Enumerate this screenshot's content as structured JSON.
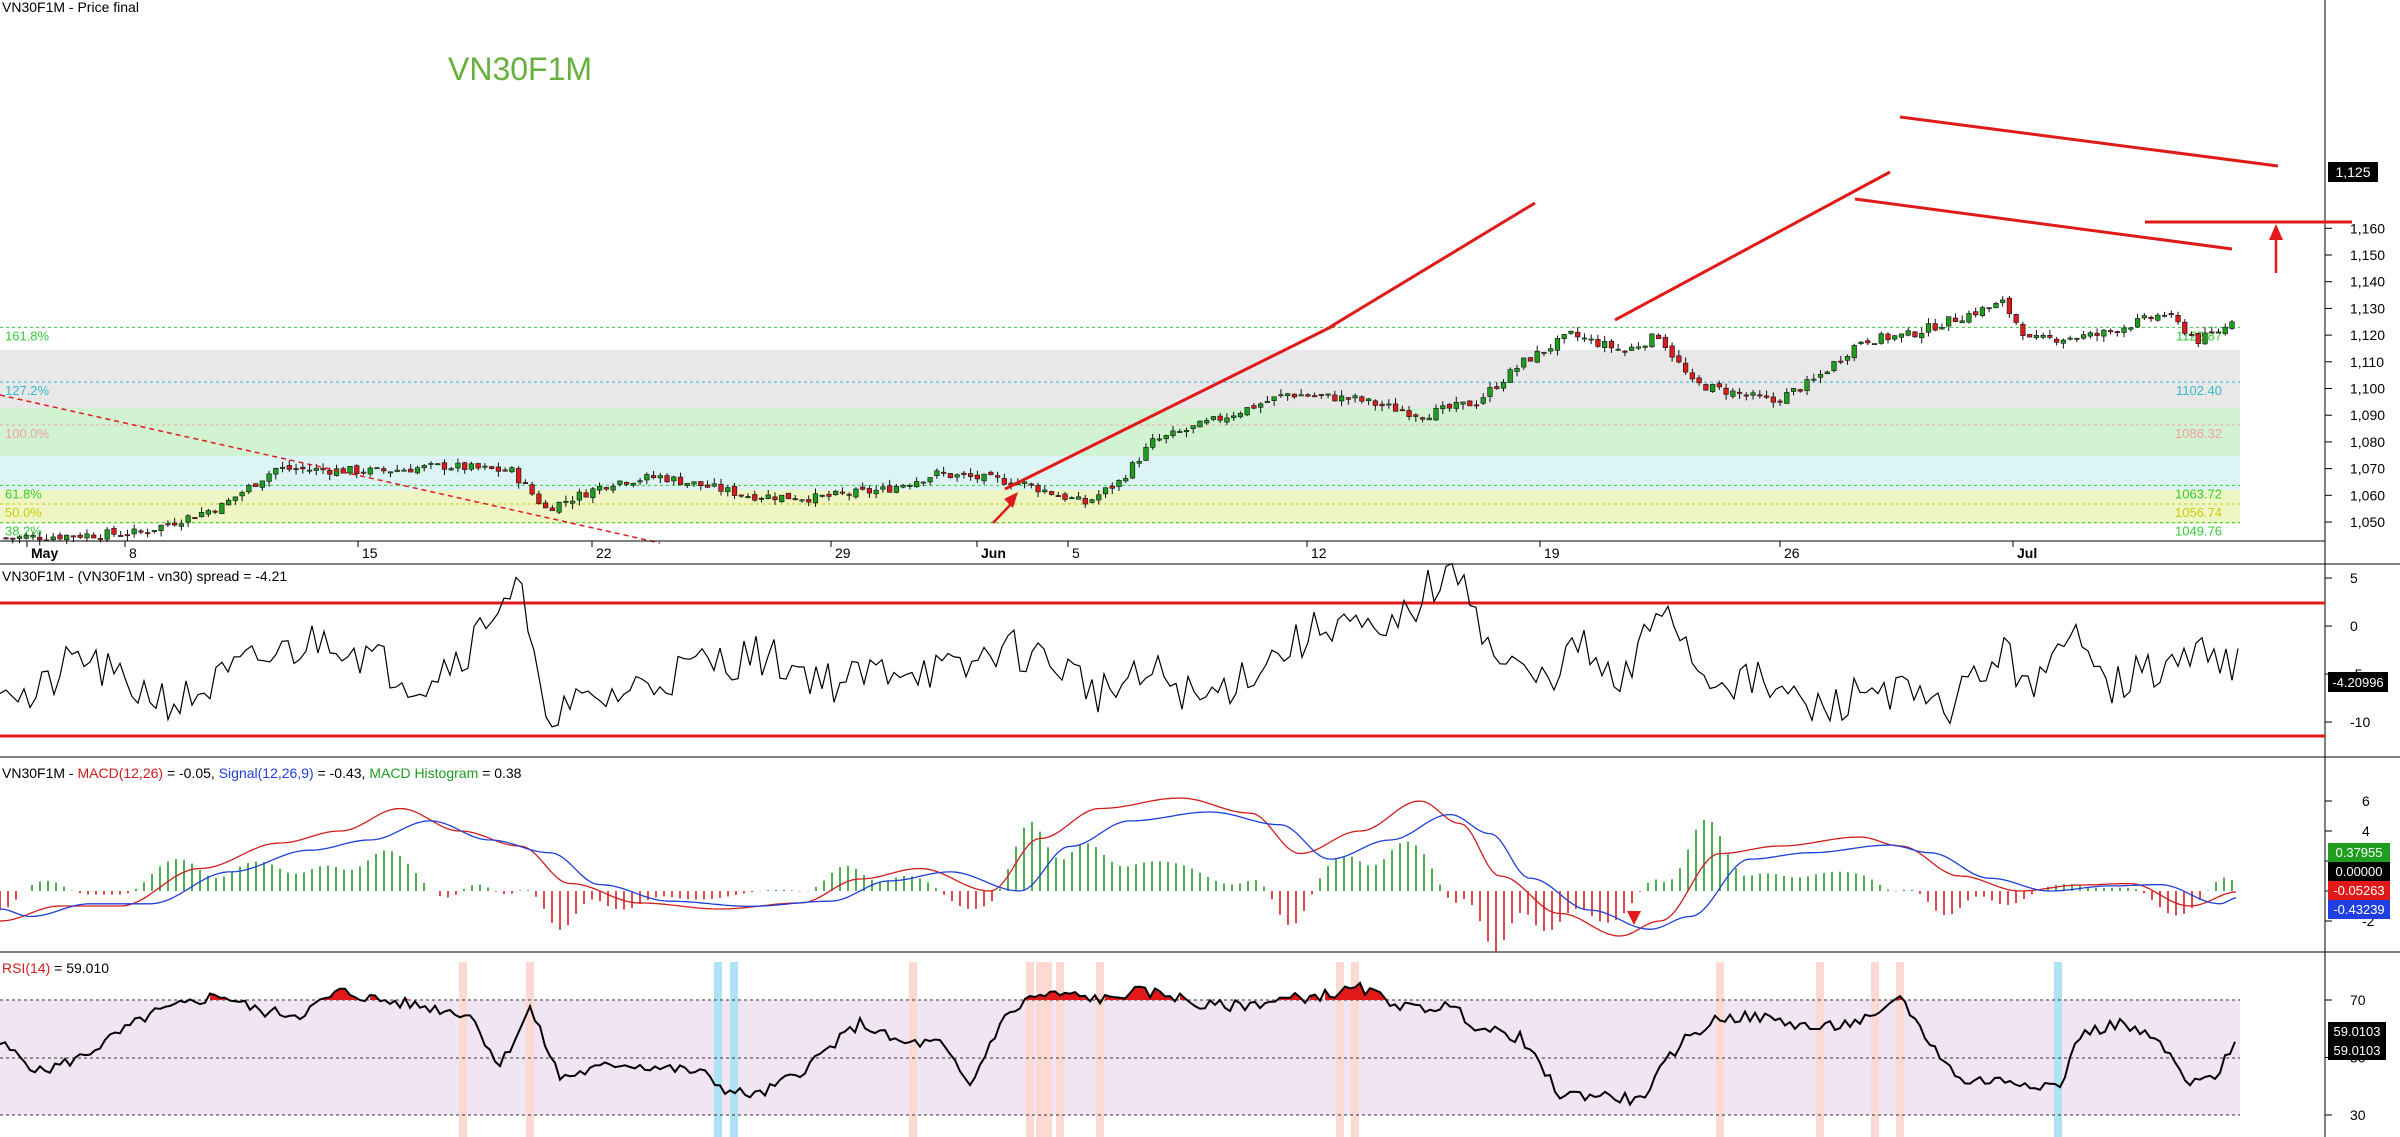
{
  "panels": {
    "price": {
      "header": "VN30F1M - Price final",
      "watermark": "VN30F1M",
      "current_price_label": "1,125",
      "y_ticks": [
        "1,160",
        "1,150",
        "1,140",
        "1,130",
        "1,120",
        "1,110",
        "1,100",
        "1,090",
        "1,080",
        "1,070",
        "1,060",
        "1,050"
      ],
      "x_ticks": [
        "May",
        "8",
        "15",
        "22",
        "29",
        "Jun",
        "5",
        "12",
        "19",
        "26",
        "Jul"
      ],
      "fib_levels": [
        {
          "name": "161.8%",
          "value": "1122.87",
          "color": "#33cc33"
        },
        {
          "name": "127.2%",
          "value": "1102.40",
          "color": "#33bbcc"
        },
        {
          "name": "100.0%",
          "value": "1086.32",
          "color": "#f0a0a0"
        },
        {
          "name": "61.8%",
          "value": "1063.72",
          "color": "#33cc33"
        },
        {
          "name": "50.0%",
          "value": "1056.74",
          "color": "#cccc00"
        },
        {
          "name": "38.2%",
          "value": "1049.76",
          "color": "#33cc33"
        }
      ]
    },
    "spread": {
      "header": "VN30F1M - (VN30F1M - vn30) spread = -4.21",
      "current_label": "-4.20996",
      "y_ticks": [
        "5",
        "0",
        "-5",
        "-10"
      ]
    },
    "macd": {
      "header_prefix": "VN30F1M - ",
      "macd_label": "MACD(12,26)",
      "macd_value": " = -0.05, ",
      "signal_label": "Signal(12,26,9)",
      "signal_value": " = -0.43, ",
      "hist_label": "MACD Histogram",
      "hist_value": " = 0.38",
      "y_ticks": [
        "6",
        "4",
        "2",
        "0",
        "-2"
      ],
      "value_labels": [
        {
          "text": "0.37955",
          "color": "#1f9d1f"
        },
        {
          "text": "0.00000",
          "color": "#000000"
        },
        {
          "text": "-0.05263",
          "color": "#e01919"
        },
        {
          "text": "-0.43239",
          "color": "#1f3fe0"
        }
      ]
    },
    "rsi": {
      "header_label": "RSI(14)",
      "header_value": " = 59.010",
      "y_ticks": [
        "70",
        "50",
        "30"
      ],
      "value_labels": [
        "59.0103",
        "59.0103"
      ]
    }
  },
  "colors": {
    "bull": "#1f9d1f",
    "bear": "#d91c1c",
    "trendline": "#e01919",
    "macd_line": "#d01c1c",
    "signal_line": "#1f3fd9",
    "rsi_band": "#f1e4f3"
  },
  "chart_data": [
    {
      "type": "candlestick",
      "title": "VN30F1M - Price final",
      "ylim": [
        1045,
        1162
      ],
      "x_axis": "trading sessions, May 1 to Jul 7",
      "sessions_approx": 330,
      "close_path": [
        [
          0,
          1044
        ],
        [
          20,
          1046
        ],
        [
          32,
          1056
        ],
        [
          40,
          1070
        ],
        [
          55,
          1069
        ],
        [
          65,
          1071
        ],
        [
          75,
          1069
        ],
        [
          80,
          1055
        ],
        [
          90,
          1065
        ],
        [
          97,
          1067
        ],
        [
          110,
          1060
        ],
        [
          120,
          1059
        ],
        [
          130,
          1062
        ],
        [
          138,
          1068
        ],
        [
          150,
          1065
        ],
        [
          160,
          1057
        ],
        [
          165,
          1065
        ],
        [
          170,
          1080
        ],
        [
          178,
          1087
        ],
        [
          190,
          1098
        ],
        [
          200,
          1096
        ],
        [
          210,
          1090
        ],
        [
          218,
          1095
        ],
        [
          225,
          1110
        ],
        [
          232,
          1120
        ],
        [
          240,
          1114
        ],
        [
          245,
          1120
        ],
        [
          250,
          1102
        ],
        [
          262,
          1095
        ],
        [
          268,
          1103
        ],
        [
          275,
          1118
        ],
        [
          282,
          1120
        ],
        [
          290,
          1127
        ],
        [
          296,
          1132
        ],
        [
          300,
          1118
        ],
        [
          310,
          1120
        ],
        [
          320,
          1128
        ],
        [
          325,
          1118
        ],
        [
          330,
          1124
        ]
      ],
      "last_close": 1125
    },
    {
      "type": "line",
      "title": "VN30F1M - (VN30F1M - vn30) spread = -4.21",
      "ylim": [
        -11,
        7
      ],
      "upper_band": 3.5,
      "lower_band": -9.5,
      "last": -4.20996
    },
    {
      "type": "line",
      "title": "MACD(12,26), Signal(12,26,9), MACD Histogram",
      "ylim": [
        -3.5,
        7
      ],
      "macd_last": -0.05,
      "signal_last": -0.43,
      "hist_last": 0.38
    },
    {
      "type": "line",
      "title": "RSI(14)",
      "ylim": [
        25,
        80
      ],
      "levels": [
        70,
        50,
        30
      ],
      "last": 59.0103
    }
  ]
}
